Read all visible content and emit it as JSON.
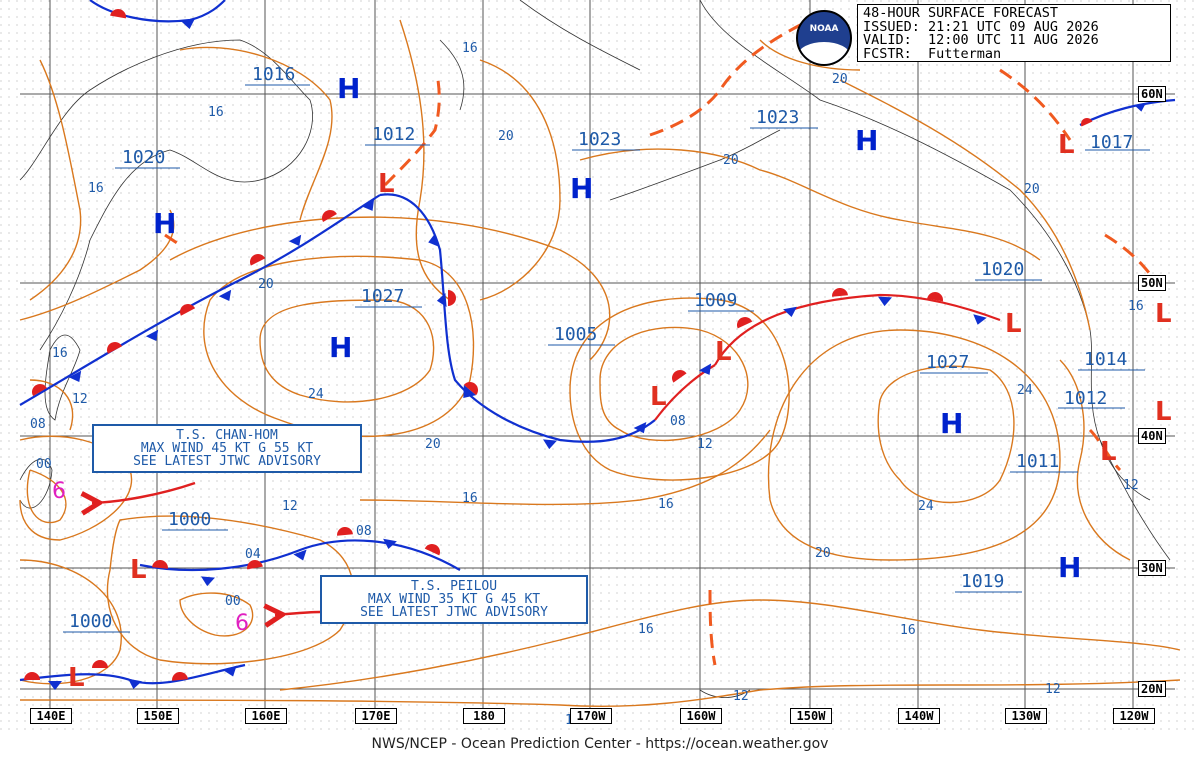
{
  "header": {
    "title": "48-HOUR SURFACE FORECAST",
    "issued": "ISSUED: 21:21 UTC 09 AUG 2026",
    "valid": "VALID:  12:00 UTC 11 AUG 2026",
    "forecaster": "FCSTR:  Futterman"
  },
  "logo_text": "NOAA",
  "footer": "NWS/NCEP - Ocean Prediction Center - https://ocean.weather.gov",
  "longitude_labels": [
    "140E",
    "150E",
    "160E",
    "170E",
    "180",
    "170W",
    "160W",
    "150W",
    "140W",
    "130W",
    "120W"
  ],
  "latitude_labels": [
    "60N",
    "50N",
    "40N",
    "30N",
    "20N"
  ],
  "pressure_labels": [
    "1016",
    "1012",
    "1020",
    "1023",
    "1023",
    "1017",
    "1027",
    "1005",
    "1009",
    "1020",
    "1027",
    "1014",
    "1012",
    "1011",
    "1000",
    "1019",
    "1000"
  ],
  "isobar_labels": [
    "16",
    "16",
    "20",
    "20",
    "20",
    "16",
    "20",
    "16",
    "12",
    "24",
    "20",
    "08",
    "12",
    "16",
    "12",
    "00",
    "04",
    "08",
    "00",
    "08",
    "16",
    "16",
    "12",
    "12",
    "12",
    "24",
    "20",
    "16",
    "20",
    "24",
    "16",
    "12"
  ],
  "high_symbol": "H",
  "low_symbol": "L",
  "storms": [
    {
      "line1": "T.S. CHAN-HOM",
      "line2": "MAX WIND 45 KT G 55 KT",
      "line3": "SEE LATEST JTWC ADVISORY"
    },
    {
      "line1": "T.S. PEILOU",
      "line2": "MAX WIND 35 KT G 45 KT",
      "line3": "SEE LATEST JTWC ADVISORY"
    }
  ],
  "colors": {
    "isobar": "#d9781e",
    "warm_front": "#e02020",
    "cold_front": "#1030d0",
    "high": "#0022cc",
    "low": "#e03020",
    "label": "#1e5aa8",
    "tropical": "#e020c0"
  }
}
